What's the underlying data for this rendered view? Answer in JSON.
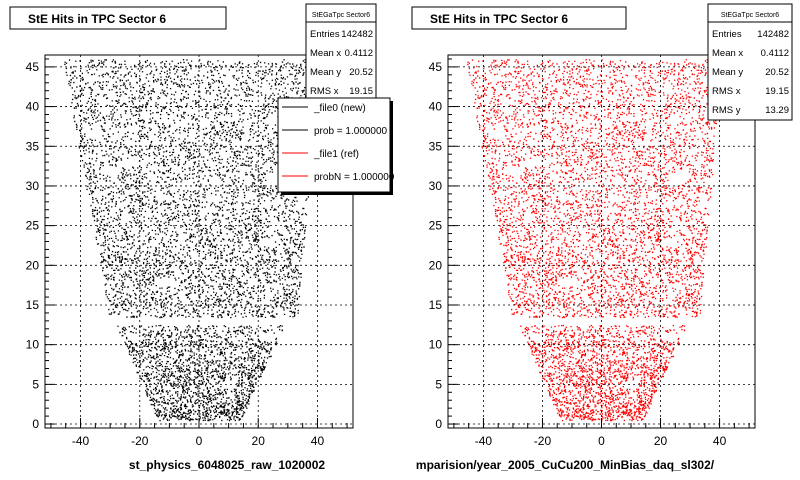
{
  "chart_data": [
    {
      "type": "scatter",
      "title": "StE Hits in TPC Sector 6",
      "xlabel": "st_physics_6048025_raw_1020002",
      "ylabel": "",
      "xlim": [
        -52,
        52
      ],
      "ylim": [
        -0.5,
        46.5
      ],
      "xticks": [
        -40,
        -20,
        0,
        20,
        40
      ],
      "yticks": [
        0,
        5,
        10,
        15,
        20,
        25,
        30,
        35,
        40,
        45
      ],
      "grid": true,
      "marker_color": "#000000",
      "stats": {
        "name": "StEGaTpc Sector6",
        "rows": [
          {
            "label": "Entries",
            "value": "142482"
          },
          {
            "label": "Mean x",
            "value": "0.4112"
          },
          {
            "label": "Mean y",
            "value": "20.52"
          },
          {
            "label": "RMS x",
            "value": "19.15"
          }
        ]
      },
      "legend": {
        "placement": "top-right",
        "entries": [
          {
            "label": "_file0 (new)",
            "color": "#000000"
          },
          {
            "label": "prob = 1.000000",
            "color": "#000000"
          },
          {
            "label": "_file1 (ref)",
            "color": "#ff0000"
          },
          {
            "label": "probN = 1.000000",
            "color": "#ff0000"
          }
        ]
      },
      "series": [
        {
          "shape_outline_x_by_y": [
            {
              "y": 0.5,
              "xmin": -14,
              "xmax": 14
            },
            {
              "y": 12.5,
              "xmin": -28,
              "xmax": 29
            },
            {
              "y": 13.0,
              "xmin": -30,
              "xmax": 33
            },
            {
              "y": 46.0,
              "xmin": -46,
              "xmax": 41
            }
          ],
          "padrow_gap_y": [
            12.5,
            13.5
          ],
          "holes": [
            {
              "x": -22,
              "y": 11
            },
            {
              "x": 23,
              "y": 11
            },
            {
              "x": 10,
              "y": 5
            },
            {
              "x": -36,
              "y": 36.5
            },
            {
              "x": -30,
              "y": 32
            },
            {
              "x": -23,
              "y": 33
            },
            {
              "x": -4,
              "y": 30
            },
            {
              "x": 26,
              "y": 25
            },
            {
              "x": 23,
              "y": 23
            },
            {
              "x": -12,
              "y": 18
            },
            {
              "x": 25,
              "y": 31
            }
          ]
        }
      ]
    },
    {
      "type": "scatter",
      "title": "StE Hits in TPC Sector 6",
      "xlabel": "mparision/year_2005_CuCu200_MinBias_daq_sl302/",
      "ylabel": "",
      "xlim": [
        -52,
        52
      ],
      "ylim": [
        -0.5,
        46.5
      ],
      "xticks": [
        -40,
        -20,
        0,
        20,
        40
      ],
      "yticks": [
        0,
        5,
        10,
        15,
        20,
        25,
        30,
        35,
        40,
        45
      ],
      "grid": true,
      "marker_color": "#ff0000",
      "stats": {
        "name": "StEGaTpc Sector6",
        "rows": [
          {
            "label": "Entries",
            "value": "142482"
          },
          {
            "label": "Mean x",
            "value": "0.4112"
          },
          {
            "label": "Mean y",
            "value": "20.52"
          },
          {
            "label": "RMS x",
            "value": "19.15"
          },
          {
            "label": "RMS y",
            "value": "13.29"
          }
        ]
      },
      "series": [
        {
          "shape_outline_x_by_y": [
            {
              "y": 0.5,
              "xmin": -14,
              "xmax": 14
            },
            {
              "y": 12.5,
              "xmin": -28,
              "xmax": 29
            },
            {
              "y": 13.0,
              "xmin": -30,
              "xmax": 33
            },
            {
              "y": 46.0,
              "xmin": -46,
              "xmax": 41
            }
          ],
          "padrow_gap_y": [
            12.5,
            13.5
          ],
          "holes": [
            {
              "x": -22,
              "y": 11
            },
            {
              "x": 23,
              "y": 11
            },
            {
              "x": 10,
              "y": 5
            },
            {
              "x": -36,
              "y": 36.5
            },
            {
              "x": -30,
              "y": 32
            },
            {
              "x": -23,
              "y": 33
            },
            {
              "x": -4,
              "y": 30
            },
            {
              "x": 26,
              "y": 25
            },
            {
              "x": 23,
              "y": 23
            },
            {
              "x": -12,
              "y": 18
            },
            {
              "x": 25,
              "y": 31
            }
          ]
        }
      ]
    }
  ]
}
